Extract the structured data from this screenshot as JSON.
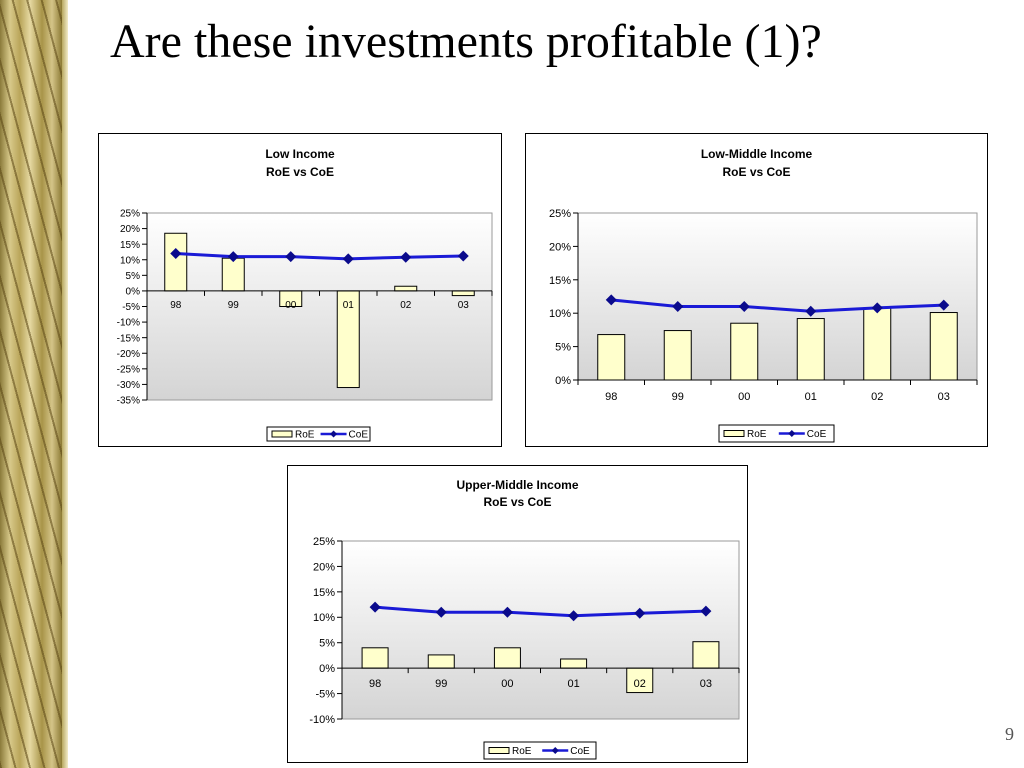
{
  "slide": {
    "title": "Are these investments profitable (1)?",
    "page_number": "9"
  },
  "colors": {
    "roe_fill": "#ffffcc",
    "coe_line": "#1a1ad6",
    "coe_marker": "#0a0a8c",
    "plot_gradient_top": "#ffffff",
    "plot_gradient_bottom": "#d4d4d4"
  },
  "chart_data": [
    {
      "type": "bar",
      "title": "Low Income",
      "subtitle": "RoE vs CoE",
      "categories": [
        "98",
        "99",
        "00",
        "01",
        "02",
        "03"
      ],
      "series": [
        {
          "name": "RoE",
          "type": "bar",
          "values": [
            18.5,
            10.5,
            -5,
            -31,
            1.5,
            -1.5
          ]
        },
        {
          "name": "CoE",
          "type": "line",
          "values": [
            12,
            11,
            11,
            10.3,
            10.8,
            11.2
          ]
        }
      ],
      "ylim": [
        -35,
        25
      ],
      "yticks": [
        25,
        20,
        15,
        10,
        5,
        0,
        -5,
        -10,
        -15,
        -20,
        -25,
        -30,
        -35
      ],
      "ytick_labels": [
        "25%",
        "20%",
        "15%",
        "10%",
        "5%",
        "0%",
        "-5%",
        "-10%",
        "-15%",
        "-20%",
        "-25%",
        "-30%",
        "-35%"
      ],
      "legend": [
        "RoE",
        "CoE"
      ],
      "legend_position": "bottom"
    },
    {
      "type": "bar",
      "title": "Low-Middle Income",
      "subtitle": "RoE vs CoE",
      "categories": [
        "98",
        "99",
        "00",
        "01",
        "02",
        "03"
      ],
      "series": [
        {
          "name": "RoE",
          "type": "bar",
          "values": [
            6.8,
            7.4,
            8.5,
            9.2,
            10.8,
            10.1
          ]
        },
        {
          "name": "CoE",
          "type": "line",
          "values": [
            12,
            11,
            11,
            10.3,
            10.8,
            11.2
          ]
        }
      ],
      "ylim": [
        0,
        25
      ],
      "yticks": [
        25,
        20,
        15,
        10,
        5,
        0
      ],
      "ytick_labels": [
        "25%",
        "20%",
        "15%",
        "10%",
        "5%",
        "0%"
      ],
      "legend": [
        "RoE",
        "CoE"
      ],
      "legend_position": "bottom"
    },
    {
      "type": "bar",
      "title": "Upper-Middle Income",
      "subtitle": "RoE vs CoE",
      "categories": [
        "98",
        "99",
        "00",
        "01",
        "02",
        "03"
      ],
      "series": [
        {
          "name": "RoE",
          "type": "bar",
          "values": [
            4,
            2.6,
            4,
            1.8,
            -4.8,
            5.2
          ]
        },
        {
          "name": "CoE",
          "type": "line",
          "values": [
            12,
            11,
            11,
            10.3,
            10.8,
            11.2
          ]
        }
      ],
      "ylim": [
        -10,
        25
      ],
      "yticks": [
        25,
        20,
        15,
        10,
        5,
        0,
        -5,
        -10
      ],
      "ytick_labels": [
        "25%",
        "20%",
        "15%",
        "10%",
        "5%",
        "0%",
        "-5%",
        "-10%"
      ],
      "legend": [
        "RoE",
        "CoE"
      ],
      "legend_position": "bottom"
    }
  ]
}
